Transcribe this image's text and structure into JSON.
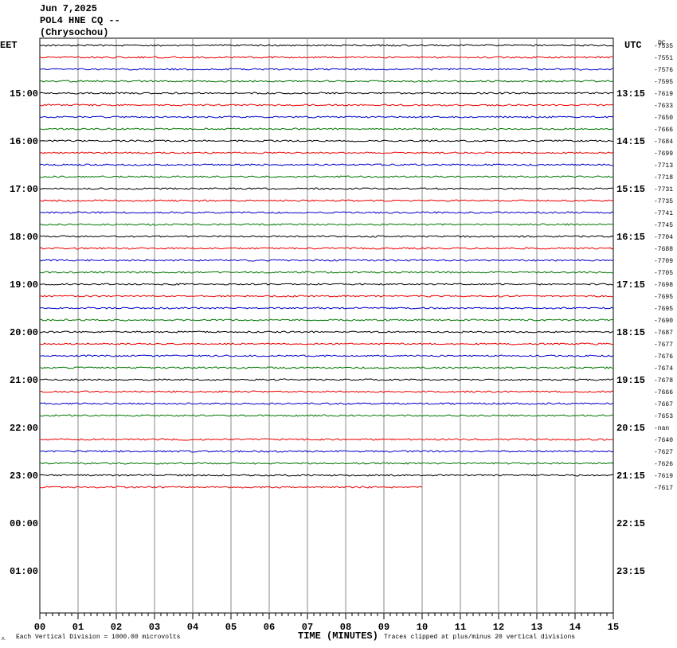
{
  "header": {
    "date": "Jun 7,2025",
    "station": "POL4 HNE CQ --",
    "location": "(Chrysochou)"
  },
  "left_axis": {
    "title": "EET",
    "labels": [
      "15:00",
      "16:00",
      "17:00",
      "18:00",
      "19:00",
      "20:00",
      "21:00",
      "22:00",
      "23:00",
      "00:00",
      "01:00"
    ]
  },
  "right_axis": {
    "title": "UTC",
    "labels": [
      "13:15",
      "14:15",
      "15:15",
      "16:15",
      "17:15",
      "18:15",
      "19:15",
      "20:15",
      "21:15",
      "22:15",
      "23:15"
    ]
  },
  "offsets": {
    "title": "DC",
    "labels": [
      "-7535",
      "-7551",
      "-7576",
      "-7595",
      "-7619",
      "-7633",
      "-7650",
      "-7666",
      "-7684",
      "-7699",
      "-7713",
      "-7718",
      "-7731",
      "-7735",
      "-7741",
      "-7745",
      "-7704",
      "-7688",
      "-7709",
      "-7705",
      "-7698",
      "-7695",
      "-7695",
      "-7690",
      "-7687",
      "-7677",
      "-7676",
      "-7674",
      "-7678",
      "-7666",
      "-7667",
      "-7653",
      "-nan",
      "-7640",
      "-7627",
      "-7626",
      "-7619",
      "-7617"
    ]
  },
  "x_axis": {
    "title": "TIME (MINUTES)",
    "labels": [
      "00",
      "01",
      "02",
      "03",
      "04",
      "05",
      "06",
      "07",
      "08",
      "09",
      "10",
      "11",
      "12",
      "13",
      "14",
      "15"
    ]
  },
  "footer": {
    "logo": "JL",
    "scale": "Each Vertical Division = 1000.00 microvolts",
    "clip": "Traces clipped at plus/minus 20 vertical divisions"
  }
}
